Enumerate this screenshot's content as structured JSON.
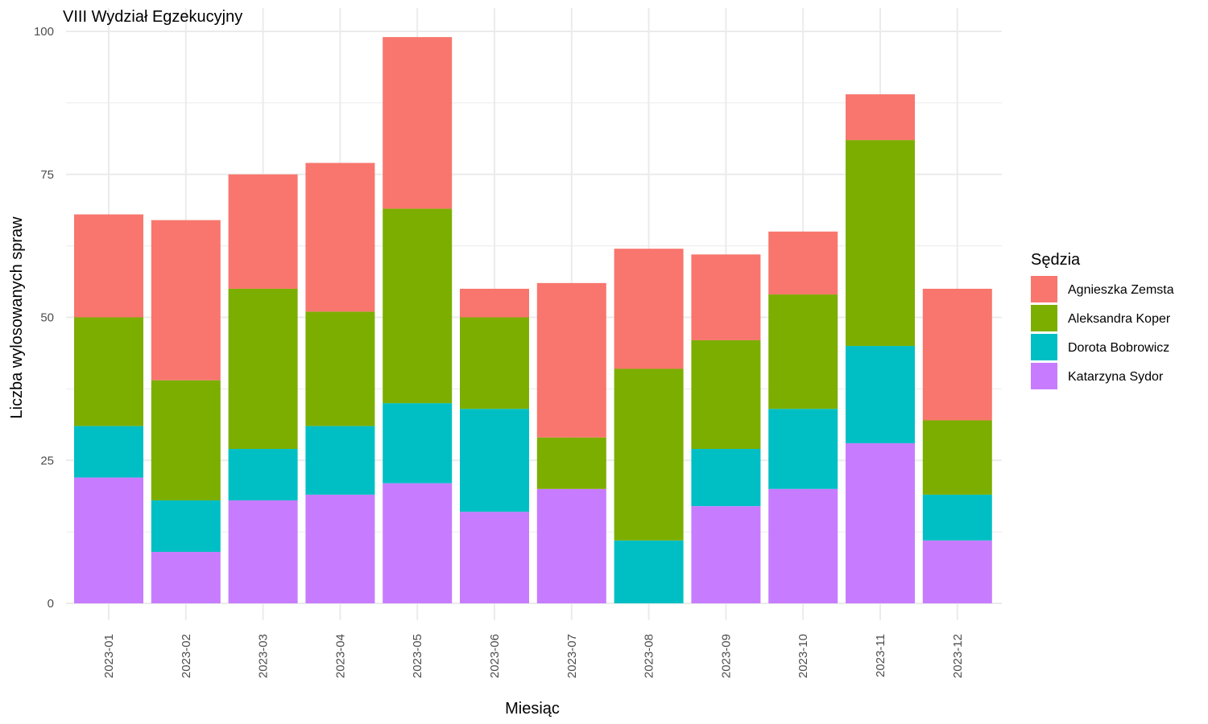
{
  "chart_data": {
    "type": "bar",
    "stacked": true,
    "title": "VIII Wydział Egzekucyjny",
    "xlabel": "Miesiąc",
    "ylabel": "Liczba wylosowanych spraw",
    "ylim": [
      0,
      100
    ],
    "yticks": [
      0,
      25,
      50,
      75,
      100
    ],
    "grid": true,
    "legend_title": "Sędzia",
    "legend_position": "right",
    "categories": [
      "2023-01",
      "2023-02",
      "2023-03",
      "2023-04",
      "2023-05",
      "2023-06",
      "2023-07",
      "2023-08",
      "2023-09",
      "2023-10",
      "2023-11",
      "2023-12"
    ],
    "series": [
      {
        "name": "Katarzyna Sydor",
        "color": "#C77CFF",
        "values": [
          22,
          9,
          18,
          19,
          21,
          16,
          20,
          0,
          17,
          20,
          28,
          11
        ]
      },
      {
        "name": "Dorota Bobrowicz",
        "color": "#00BFC4",
        "values": [
          9,
          9,
          9,
          12,
          14,
          18,
          0,
          11,
          10,
          14,
          17,
          8
        ]
      },
      {
        "name": "Aleksandra Koper",
        "color": "#7CAE00",
        "values": [
          19,
          21,
          28,
          20,
          34,
          16,
          9,
          30,
          19,
          20,
          36,
          13
        ]
      },
      {
        "name": "Agnieszka Zemsta",
        "color": "#F8766D",
        "values": [
          18,
          28,
          20,
          26,
          30,
          5,
          27,
          21,
          15,
          11,
          8,
          23
        ]
      }
    ],
    "legend_order": [
      "Agnieszka Zemsta",
      "Aleksandra Koper",
      "Dorota Bobrowicz",
      "Katarzyna Sydor"
    ]
  }
}
